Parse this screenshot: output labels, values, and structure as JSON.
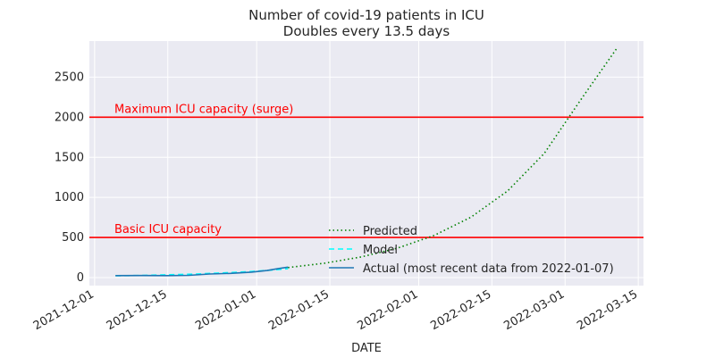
{
  "chart_data": {
    "type": "line",
    "title": "Number of covid-19 patients in ICU",
    "subtitle": "Doubles every 13.5 days",
    "xlabel": "DATE",
    "ylabel": "",
    "x_axis_type": "date",
    "xlim": [
      "2021-11-30",
      "2022-03-16"
    ],
    "ylim": [
      -100,
      2950
    ],
    "x_ticks": [
      "2021-12-01",
      "2021-12-15",
      "2022-01-01",
      "2022-01-15",
      "2022-02-01",
      "2022-02-15",
      "2022-03-01",
      "2022-03-15"
    ],
    "y_ticks": [
      0,
      500,
      1000,
      1500,
      2000,
      2500
    ],
    "grid": true,
    "background": "#eaeaf2",
    "legend_position": "lower-center",
    "annotations": [
      {
        "text": "Maximum ICU capacity (surge)",
        "color": "#ff0000",
        "y": 2000
      },
      {
        "text": "Basic ICU capacity",
        "color": "#ff0000",
        "y": 500
      }
    ],
    "hlines": [
      {
        "y": 2000,
        "color": "#ff0000"
      },
      {
        "y": 500,
        "color": "#ff0000"
      }
    ],
    "series": [
      {
        "name": "Predicted",
        "style": "dotted",
        "color": "#008000",
        "x": [
          "2022-01-07",
          "2022-01-14",
          "2022-01-21",
          "2022-01-28",
          "2022-02-04",
          "2022-02-11",
          "2022-02-18",
          "2022-02-25",
          "2022-03-04",
          "2022-03-11"
        ],
        "y": [
          125,
          179,
          257,
          369,
          527,
          754,
          1080,
          1548,
          2218,
          2870
        ]
      },
      {
        "name": "Model",
        "style": "dashed",
        "color": "#00ffff",
        "x": [
          "2021-12-05",
          "2021-12-10",
          "2021-12-15",
          "2021-12-20",
          "2021-12-25",
          "2021-12-30",
          "2022-01-04",
          "2022-01-07"
        ],
        "y": [
          22,
          27,
          35,
          44,
          57,
          73,
          94,
          110
        ]
      },
      {
        "name": "Actual (most recent data from 2022-01-07)",
        "style": "solid",
        "color": "#1f77b4",
        "x": [
          "2021-12-05",
          "2021-12-10",
          "2021-12-15",
          "2021-12-19",
          "2021-12-23",
          "2021-12-27",
          "2021-12-31",
          "2022-01-03",
          "2022-01-05",
          "2022-01-07"
        ],
        "y": [
          25,
          26,
          25,
          28,
          45,
          53,
          68,
          88,
          110,
          130
        ]
      }
    ]
  }
}
